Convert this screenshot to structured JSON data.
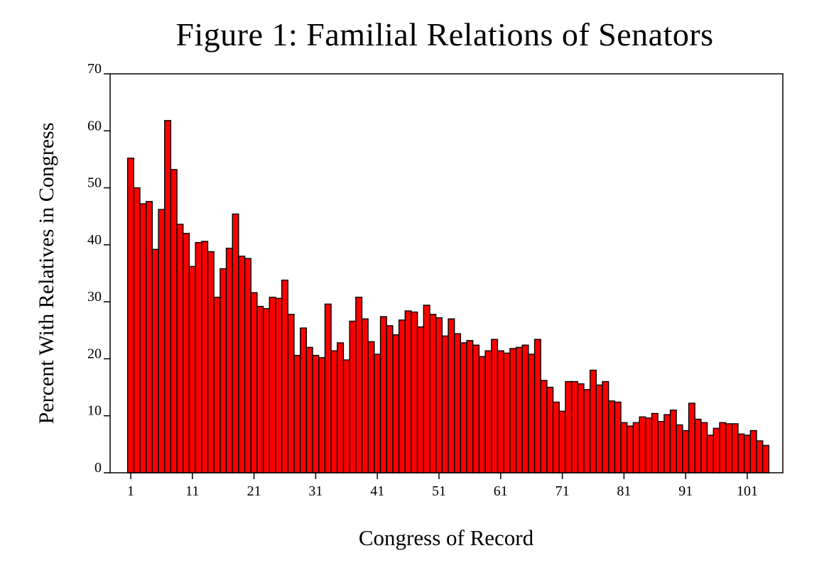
{
  "chart_data": {
    "type": "bar",
    "title": "Figure 1: Familial Relations of Senators",
    "xlabel": "Congress of Record",
    "ylabel": "Percent With Relatives in Congress",
    "ylim": [
      0,
      70
    ],
    "yticks": [
      0,
      10,
      20,
      30,
      40,
      50,
      60,
      70
    ],
    "xticks": [
      1,
      11,
      21,
      31,
      41,
      51,
      61,
      71,
      81,
      91,
      101
    ],
    "x_start": 1,
    "color": "#ff0000",
    "grid": false,
    "values": [
      55.2,
      50.0,
      47.2,
      47.6,
      39.2,
      46.2,
      61.8,
      53.2,
      43.6,
      42.0,
      36.2,
      40.4,
      40.6,
      38.8,
      30.8,
      35.8,
      39.4,
      45.4,
      38.0,
      37.6,
      31.6,
      29.2,
      28.8,
      30.8,
      30.6,
      33.8,
      27.8,
      20.6,
      25.4,
      22.0,
      20.6,
      20.2,
      29.6,
      21.4,
      22.8,
      19.8,
      26.6,
      30.8,
      27.0,
      23.0,
      20.8,
      27.4,
      25.8,
      24.2,
      26.8,
      28.4,
      28.2,
      25.6,
      29.4,
      27.8,
      27.2,
      24.0,
      27.0,
      24.4,
      22.8,
      23.2,
      22.4,
      20.4,
      21.4,
      23.4,
      21.4,
      21.0,
      21.8,
      22.0,
      22.4,
      20.8,
      23.4,
      16.2,
      15.0,
      12.4,
      10.8,
      16.0,
      16.0,
      15.6,
      14.6,
      18.0,
      15.4,
      16.0,
      12.6,
      12.4,
      8.8,
      8.2,
      8.8,
      9.8,
      9.6,
      10.4,
      9.0,
      10.2,
      11.0,
      8.4,
      7.4,
      12.2,
      9.4,
      8.8,
      6.6,
      7.8,
      8.8,
      8.6,
      8.6,
      6.8,
      6.6,
      7.4,
      5.6,
      4.8
    ]
  }
}
